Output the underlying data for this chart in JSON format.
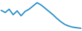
{
  "x": [
    0,
    1,
    2,
    3,
    4,
    5,
    6,
    7,
    8,
    9,
    10,
    11,
    12,
    13,
    14,
    15,
    16,
    17,
    18,
    19,
    20
  ],
  "y": [
    78,
    74,
    80,
    70,
    77,
    68,
    76,
    80,
    86,
    92,
    88,
    82,
    76,
    70,
    63,
    57,
    52,
    49,
    47,
    46,
    45
  ],
  "line_color": "#2b8fc9",
  "linewidth": 1.4,
  "background_color": "#ffffff",
  "ylim_min": 40,
  "ylim_max": 97
}
